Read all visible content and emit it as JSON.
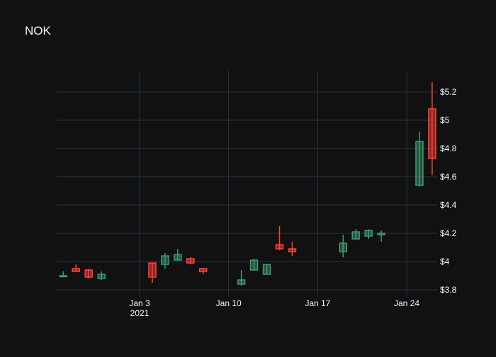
{
  "chart_data": {
    "type": "candlestick",
    "title": "NOK",
    "xlabel": "",
    "ylabel": "",
    "ylim": [
      3.77,
      5.355
    ],
    "x_tick_labels": [
      "Jan 3",
      "Jan 10",
      "Jan 17",
      "Jan 24"
    ],
    "x_tick_dates": [
      "2021-01-03",
      "2021-01-10",
      "2021-01-17",
      "2021-01-24"
    ],
    "x_year_label": "2021",
    "y_ticks": [
      3.8,
      4.0,
      4.2,
      4.4,
      4.6,
      4.8,
      5.0,
      5.2
    ],
    "y_tick_labels": [
      "$3.8",
      "$4",
      "$4.2",
      "$4.4",
      "$4.6",
      "$4.8",
      "$5",
      "$5.2"
    ],
    "grid": true,
    "colors": {
      "increasing": "#3d9970",
      "decreasing": "#ff4136",
      "background": "#111111",
      "grid": "#283442",
      "text": "#f2f5fa"
    },
    "candles": [
      {
        "date": "2020-12-28",
        "open": 3.9,
        "high": 3.93,
        "low": 3.89,
        "close": 3.9
      },
      {
        "date": "2020-12-29",
        "open": 3.95,
        "high": 3.98,
        "low": 3.93,
        "close": 3.93
      },
      {
        "date": "2020-12-30",
        "open": 3.94,
        "high": 3.95,
        "low": 3.88,
        "close": 3.89
      },
      {
        "date": "2020-12-31",
        "open": 3.88,
        "high": 3.93,
        "low": 3.87,
        "close": 3.91
      },
      {
        "date": "2021-01-04",
        "open": 3.99,
        "high": 3.99,
        "low": 3.85,
        "close": 3.89
      },
      {
        "date": "2021-01-05",
        "open": 3.98,
        "high": 4.06,
        "low": 3.95,
        "close": 4.04
      },
      {
        "date": "2021-01-06",
        "open": 4.01,
        "high": 4.09,
        "low": 4.01,
        "close": 4.05
      },
      {
        "date": "2021-01-07",
        "open": 4.02,
        "high": 4.03,
        "low": 3.98,
        "close": 3.99
      },
      {
        "date": "2021-01-08",
        "open": 3.95,
        "high": 3.95,
        "low": 3.91,
        "close": 3.93
      },
      {
        "date": "2021-01-11",
        "open": 3.84,
        "high": 3.94,
        "low": 3.83,
        "close": 3.87
      },
      {
        "date": "2021-01-12",
        "open": 3.94,
        "high": 4.02,
        "low": 3.94,
        "close": 4.01
      },
      {
        "date": "2021-01-13",
        "open": 3.91,
        "high": 3.98,
        "low": 3.91,
        "close": 3.98
      },
      {
        "date": "2021-01-14",
        "open": 4.12,
        "high": 4.25,
        "low": 4.08,
        "close": 4.09
      },
      {
        "date": "2021-01-15",
        "open": 4.09,
        "high": 4.14,
        "low": 4.04,
        "close": 4.07
      },
      {
        "date": "2021-01-19",
        "open": 4.07,
        "high": 4.19,
        "low": 4.03,
        "close": 4.13
      },
      {
        "date": "2021-01-20",
        "open": 4.16,
        "high": 4.23,
        "low": 4.16,
        "close": 4.21
      },
      {
        "date": "2021-01-21",
        "open": 4.18,
        "high": 4.23,
        "low": 4.16,
        "close": 4.22
      },
      {
        "date": "2021-01-22",
        "open": 4.19,
        "high": 4.22,
        "low": 4.14,
        "close": 4.2
      },
      {
        "date": "2021-01-25",
        "open": 4.54,
        "high": 4.92,
        "low": 4.53,
        "close": 4.85
      },
      {
        "date": "2021-01-26",
        "open": 5.08,
        "high": 5.27,
        "low": 4.61,
        "close": 4.73
      }
    ]
  }
}
